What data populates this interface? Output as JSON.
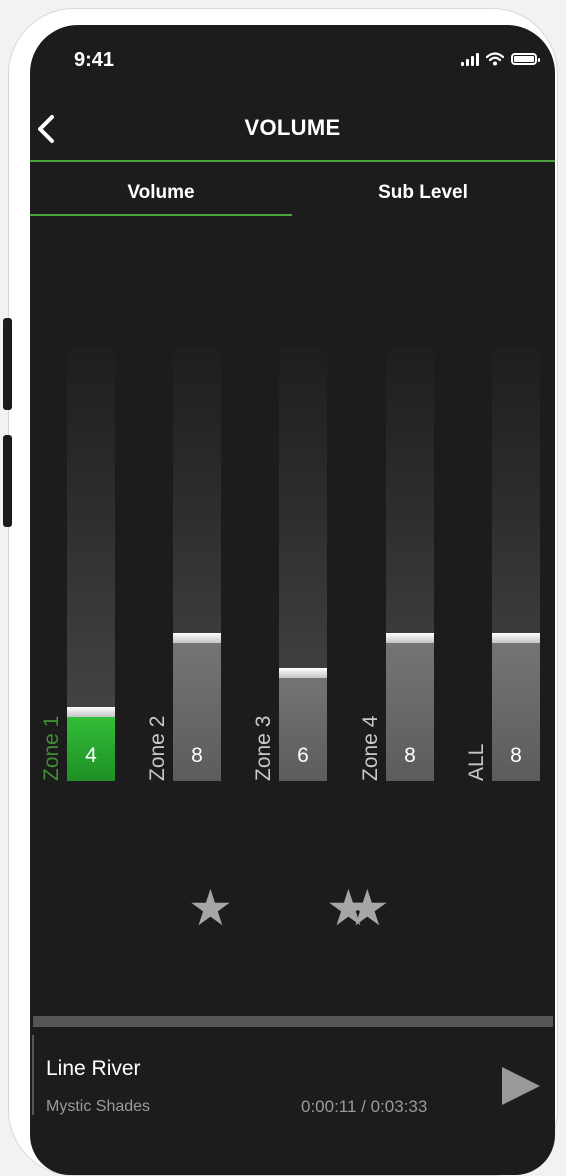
{
  "status_bar": {
    "time": "9:41"
  },
  "header": {
    "title": "VOLUME"
  },
  "tabs": [
    {
      "label": "Volume",
      "active": true
    },
    {
      "label": "Sub Level",
      "active": false
    }
  ],
  "zones": [
    {
      "label": "Zone 1",
      "value": "4",
      "level": 0.17,
      "active": true
    },
    {
      "label": "Zone 2",
      "value": "8",
      "level": 0.34,
      "active": false
    },
    {
      "label": "Zone 3",
      "value": "6",
      "level": 0.26,
      "active": false
    },
    {
      "label": "Zone 4",
      "value": "8",
      "level": 0.34,
      "active": false
    },
    {
      "label": "ALL",
      "value": "8",
      "level": 0.34,
      "active": false
    }
  ],
  "presets": [
    {
      "icon": "star-icon",
      "glyph": "★"
    },
    {
      "icon": "double-star-icon",
      "glyph": "★★"
    }
  ],
  "now_playing": {
    "title": "Line River",
    "artist": "Mystic Shades",
    "time": "0:00:11 / 0:03:33"
  },
  "colors": {
    "accent": "#4ea140",
    "active_fill": "#2bb330",
    "background": "#1c1c1c"
  }
}
